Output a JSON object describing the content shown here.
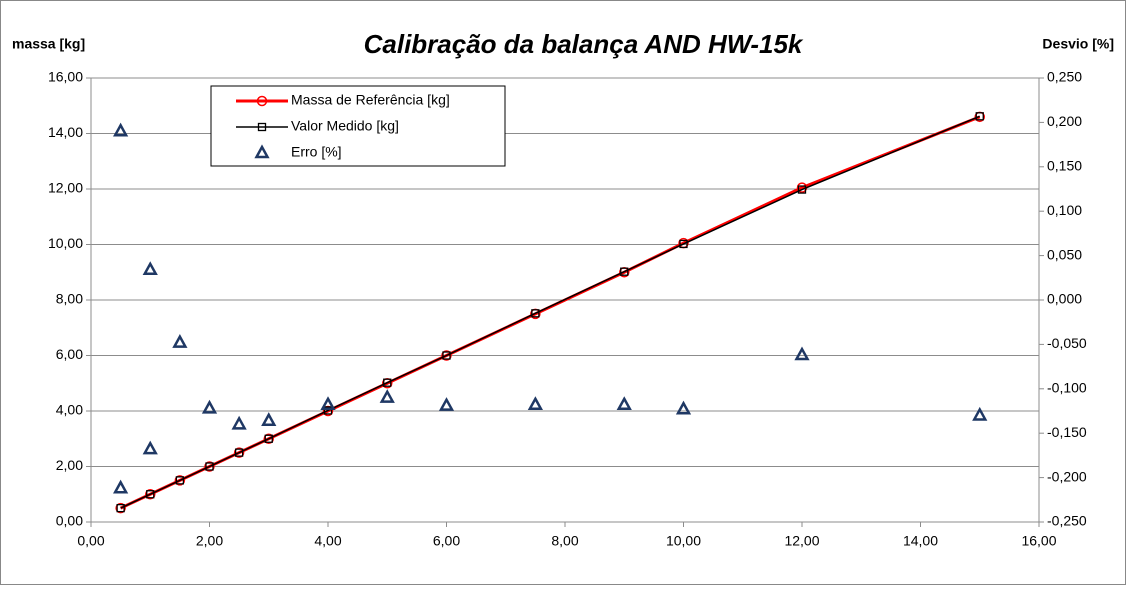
{
  "chart_data": {
    "type": "line",
    "title": "Calibração da balança AND  HW-15k",
    "ylabel": "massa [kg]",
    "y2label": "Desvio [%]",
    "xlim": [
      0,
      16
    ],
    "xticks": [
      {
        "value": 0,
        "label": "0,00"
      },
      {
        "value": 2,
        "label": "2,00"
      },
      {
        "value": 4,
        "label": "4,00"
      },
      {
        "value": 6,
        "label": "6,00"
      },
      {
        "value": 8,
        "label": "8,00"
      },
      {
        "value": 10,
        "label": "10,00"
      },
      {
        "value": 12,
        "label": "12,00"
      },
      {
        "value": 14,
        "label": "14,00"
      },
      {
        "value": 16,
        "label": "16,00"
      }
    ],
    "ylim": [
      0,
      16
    ],
    "yticks": [
      {
        "value": 0,
        "label": "0,00"
      },
      {
        "value": 2,
        "label": "2,00"
      },
      {
        "value": 4,
        "label": "4,00"
      },
      {
        "value": 6,
        "label": "6,00"
      },
      {
        "value": 8,
        "label": "8,00"
      },
      {
        "value": 10,
        "label": "10,00"
      },
      {
        "value": 12,
        "label": "12,00"
      },
      {
        "value": 14,
        "label": "14,00"
      },
      {
        "value": 16,
        "label": "16,00"
      }
    ],
    "y2lim": [
      -0.25,
      0.25
    ],
    "y2ticks": [
      {
        "value": -0.25,
        "label": "-0,250"
      },
      {
        "value": -0.2,
        "label": "-0,200"
      },
      {
        "value": -0.15,
        "label": "-0,150"
      },
      {
        "value": -0.1,
        "label": "-0,100"
      },
      {
        "value": -0.05,
        "label": "-0,050"
      },
      {
        "value": 0,
        "label": "0,000"
      },
      {
        "value": 0.05,
        "label": "0,050"
      },
      {
        "value": 0.1,
        "label": "0,100"
      },
      {
        "value": 0.15,
        "label": "0,150"
      },
      {
        "value": 0.2,
        "label": "0,200"
      },
      {
        "value": 0.25,
        "label": "0,250"
      }
    ],
    "grid": true,
    "legend": "upper left",
    "series": [
      {
        "name": "Massa de Referência  [kg]",
        "color": "#ff0000",
        "marker": "circle",
        "line": true,
        "x": [
          0.5,
          1,
          1.5,
          2,
          2.5,
          3,
          4,
          5,
          6,
          7.5,
          9,
          10,
          12,
          15
        ],
        "values": [
          0.5,
          1,
          1.5,
          2,
          2.5,
          3,
          4,
          5,
          6,
          7.5,
          9,
          10.05,
          12.05,
          14.6
        ]
      },
      {
        "name": "Valor Medido [kg]",
        "color": "#000000",
        "marker": "square",
        "line": true,
        "x": [
          0.5,
          1,
          1.5,
          2,
          2.5,
          3,
          4,
          5,
          6,
          7.5,
          9,
          10,
          12,
          15
        ],
        "values": [
          0.5,
          1,
          1.5,
          2,
          2.5,
          3,
          4.02,
          5.02,
          6.0,
          7.52,
          9.02,
          10.02,
          11.98,
          14.62
        ]
      },
      {
        "name": "Erro [%]",
        "color": "#1f3864",
        "marker": "triangle",
        "line": false,
        "axis": "y2",
        "x": [
          0.5,
          0.5,
          1,
          1,
          1.5,
          2,
          2.5,
          3,
          4,
          5,
          6,
          7.5,
          9,
          10,
          12,
          15
        ],
        "values": [
          0.19,
          -0.212,
          0.034,
          -0.168,
          -0.048,
          -0.122,
          -0.14,
          -0.136,
          -0.118,
          -0.11,
          -0.119,
          -0.118,
          -0.118,
          -0.123,
          -0.062,
          -0.13
        ]
      }
    ]
  }
}
